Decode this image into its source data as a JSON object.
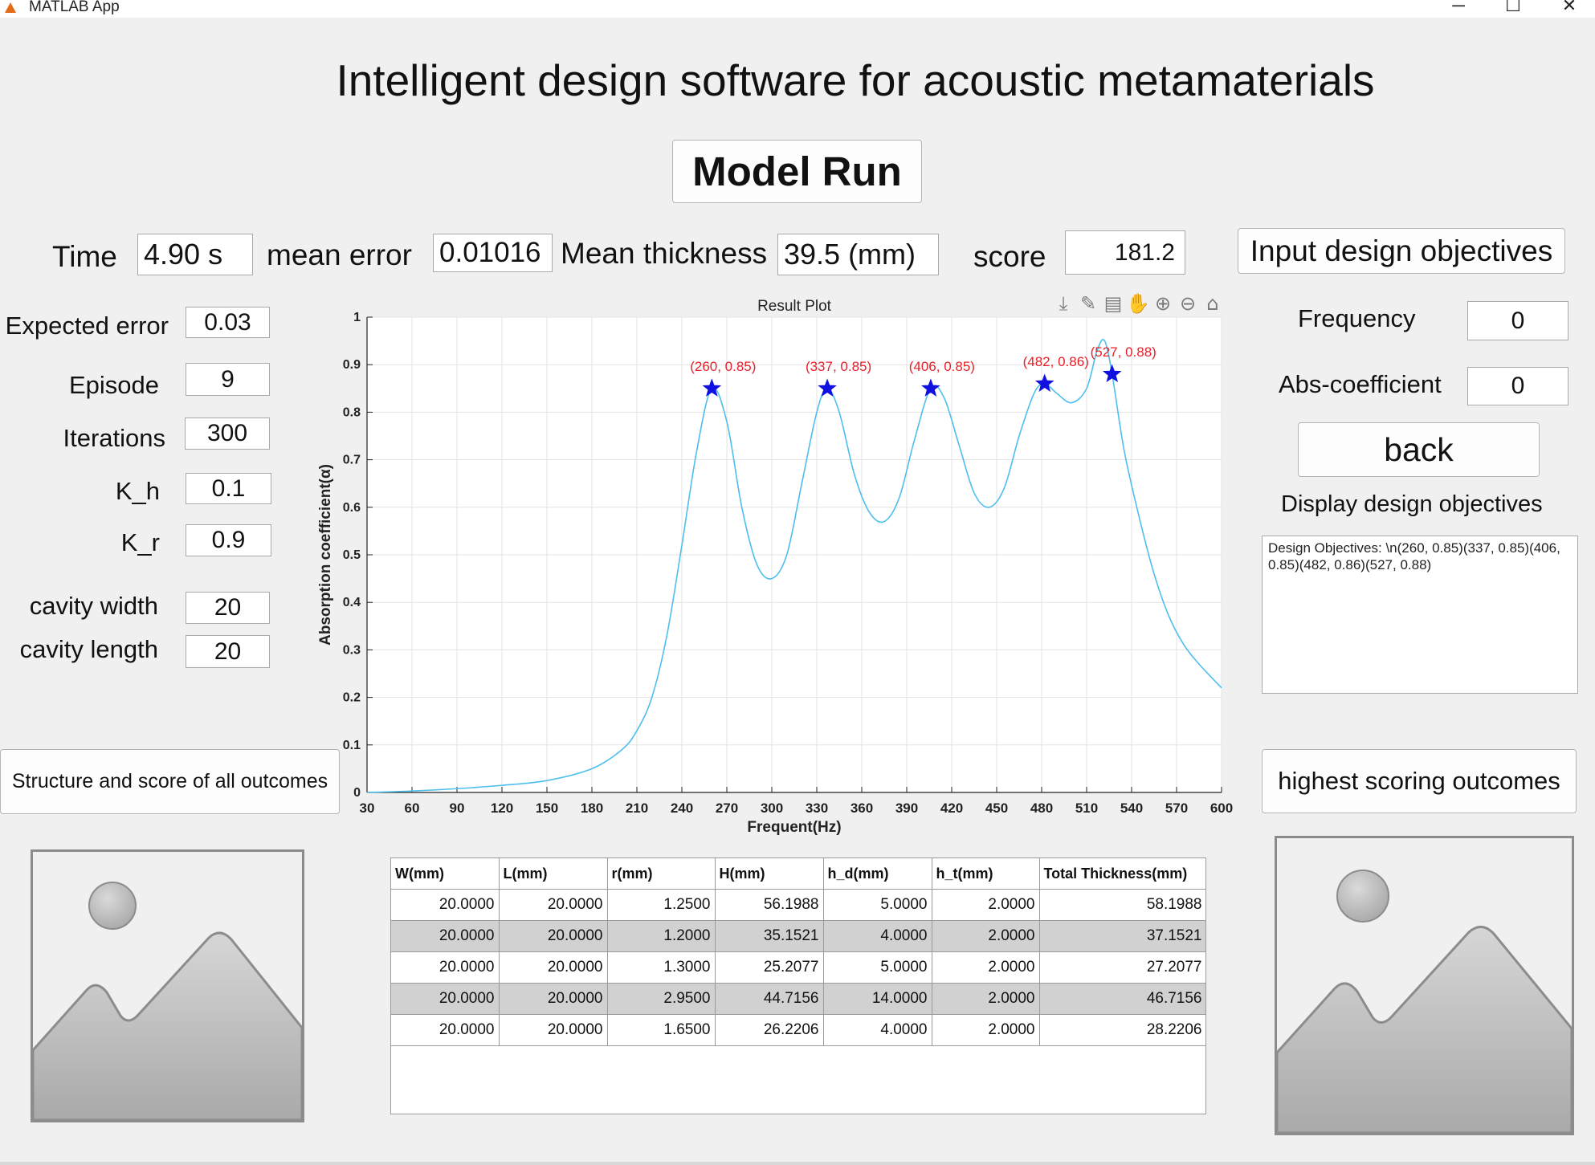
{
  "window": {
    "title": "MATLAB App",
    "minimize": "─",
    "maximize": "☐",
    "close": "✕"
  },
  "header": {
    "title": "Intelligent design software for acoustic metamaterials",
    "run_button": "Model Run"
  },
  "stats": {
    "time_label": "Time",
    "time_value": "4.90 s",
    "mean_error_label": "mean error",
    "mean_error_value": "0.01016",
    "thickness_label": "Mean thickness",
    "thickness_value": "39.5  (mm)",
    "score_label": "score",
    "score_value": "181.2"
  },
  "input_objectives_button": "Input design objectives",
  "params": [
    {
      "label": "Expected  error",
      "value": "0.03"
    },
    {
      "label": "Episode",
      "value": "9"
    },
    {
      "label": "Iterations",
      "value": "300"
    },
    {
      "label": "K_h",
      "value": "0.1"
    },
    {
      "label": "K_r",
      "value": "0.9"
    },
    {
      "label": "cavity width",
      "value": "20"
    },
    {
      "label": "cavity length",
      "value": "20"
    }
  ],
  "right_panel": {
    "frequency_label": "Frequency",
    "frequency_value": "0",
    "abs_label": "Abs-coefficient",
    "abs_value": "0",
    "back_button": "back",
    "display_label": "Display  design objectives",
    "objectives_text": "Design Objectives: \\n(260, 0.85)(337, 0.85)(406, 0.85)(482, 0.86)(527, 0.88)"
  },
  "buttons": {
    "all_outcomes": "Structure and score of all outcomes",
    "highest_outcomes": "highest scoring  outcomes"
  },
  "chart_data": {
    "type": "line",
    "title": "Result Plot",
    "xlabel": "Frequent(Hz)",
    "ylabel": "Absorption coefficient(α)",
    "xlim": [
      30,
      600
    ],
    "ylim": [
      0,
      1
    ],
    "xticks": [
      30,
      60,
      90,
      120,
      150,
      180,
      210,
      240,
      270,
      300,
      330,
      360,
      390,
      420,
      450,
      480,
      510,
      540,
      570,
      600
    ],
    "yticks": [
      0,
      0.1,
      0.2,
      0.3,
      0.4,
      0.5,
      0.6,
      0.7,
      0.8,
      0.9,
      1
    ],
    "grid": true,
    "line_color": "#4dbeee",
    "marker_color": "#1010e0",
    "label_color": "#e8202a",
    "series": [
      {
        "x": [
          30,
          60,
          90,
          120,
          150,
          180,
          200,
          210,
          220,
          230,
          240,
          250,
          260,
          270,
          280,
          290,
          300,
          310,
          320,
          330,
          337,
          345,
          355,
          365,
          375,
          385,
          395,
          406,
          415,
          425,
          435,
          445,
          455,
          465,
          475,
          482,
          490,
          500,
          510,
          517,
          522,
          527,
          535,
          545,
          555,
          565,
          575,
          585,
          600
        ],
        "y": [
          0,
          0.003,
          0.008,
          0.015,
          0.025,
          0.05,
          0.09,
          0.13,
          0.2,
          0.33,
          0.52,
          0.72,
          0.85,
          0.78,
          0.6,
          0.48,
          0.45,
          0.5,
          0.65,
          0.8,
          0.85,
          0.8,
          0.67,
          0.59,
          0.57,
          0.62,
          0.74,
          0.85,
          0.83,
          0.73,
          0.63,
          0.6,
          0.64,
          0.75,
          0.84,
          0.86,
          0.84,
          0.82,
          0.85,
          0.93,
          0.95,
          0.88,
          0.72,
          0.58,
          0.46,
          0.37,
          0.31,
          0.27,
          0.22
        ]
      }
    ],
    "markers": [
      {
        "x": 260,
        "y": 0.85,
        "label": "(260, 0.85)"
      },
      {
        "x": 337,
        "y": 0.85,
        "label": "(337, 0.85)"
      },
      {
        "x": 406,
        "y": 0.85,
        "label": "(406, 0.85)"
      },
      {
        "x": 482,
        "y": 0.86,
        "label": "(482, 0.86)"
      },
      {
        "x": 527,
        "y": 0.88,
        "label": "(527, 0.88)"
      }
    ]
  },
  "table": {
    "columns": [
      "W(mm)",
      "L(mm)",
      "r(mm)",
      "H(mm)",
      "h_d(mm)",
      "h_t(mm)",
      "Total Thickness(mm)"
    ],
    "rows": [
      [
        "20.0000",
        "20.0000",
        "1.2500",
        "56.1988",
        "5.0000",
        "2.0000",
        "58.1988"
      ],
      [
        "20.0000",
        "20.0000",
        "1.2000",
        "35.1521",
        "4.0000",
        "2.0000",
        "37.1521"
      ],
      [
        "20.0000",
        "20.0000",
        "1.3000",
        "25.2077",
        "5.0000",
        "2.0000",
        "27.2077"
      ],
      [
        "20.0000",
        "20.0000",
        "2.9500",
        "44.7156",
        "14.0000",
        "2.0000",
        "46.7156"
      ],
      [
        "20.0000",
        "20.0000",
        "1.6500",
        "26.2206",
        "4.0000",
        "2.0000",
        "28.2206"
      ]
    ]
  }
}
